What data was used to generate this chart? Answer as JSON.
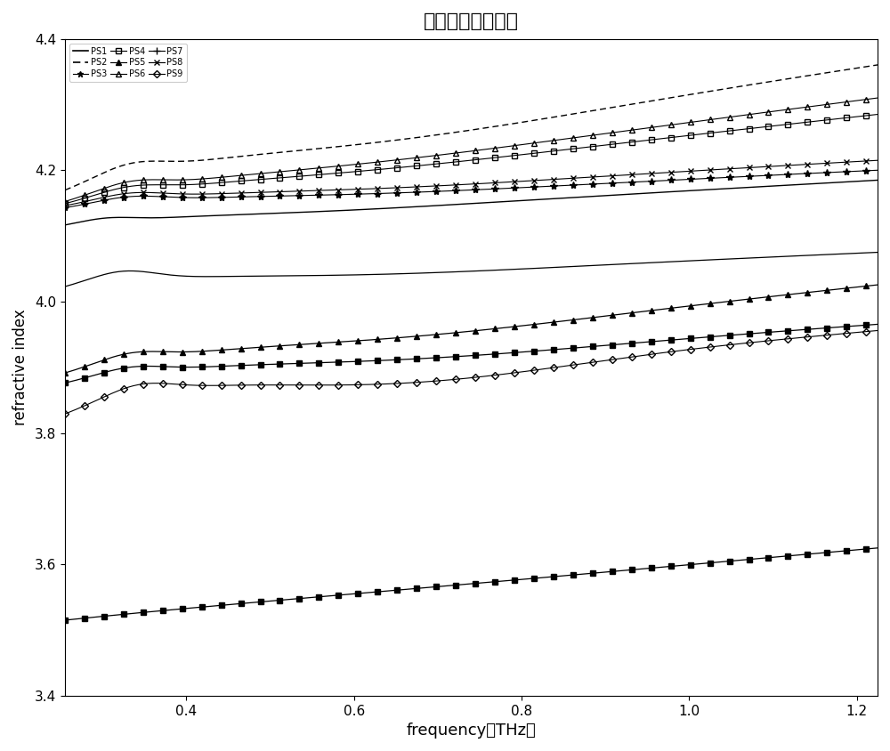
{
  "title": "实折射率光学参数",
  "xlabel": "frequency（THz）",
  "ylabel": "refractive index",
  "xlim": [
    0.255,
    1.225
  ],
  "ylim": [
    3.4,
    4.4
  ],
  "xticks": [
    0.4,
    0.6,
    0.8,
    1.0,
    1.2
  ],
  "yticks": [
    3.4,
    3.6,
    3.8,
    4.0,
    4.2,
    4.4
  ],
  "legend_entries": [
    [
      "PS1",
      "-",
      "none",
      false,
      1.2
    ],
    [
      "PS2",
      "--",
      "none",
      false,
      1.2
    ],
    [
      "PS3",
      "-",
      "*",
      true,
      1.0
    ],
    [
      "PS4",
      "-",
      "s",
      false,
      1.0
    ],
    [
      "PS5",
      "-",
      "^",
      true,
      1.0
    ],
    [
      "PS6",
      "-",
      "^",
      false,
      1.0
    ],
    [
      "PS7",
      "-",
      "+",
      true,
      1.0
    ],
    [
      "PS8",
      "-",
      "x",
      true,
      1.0
    ],
    [
      "PS9",
      "-",
      "D",
      false,
      1.0
    ]
  ]
}
